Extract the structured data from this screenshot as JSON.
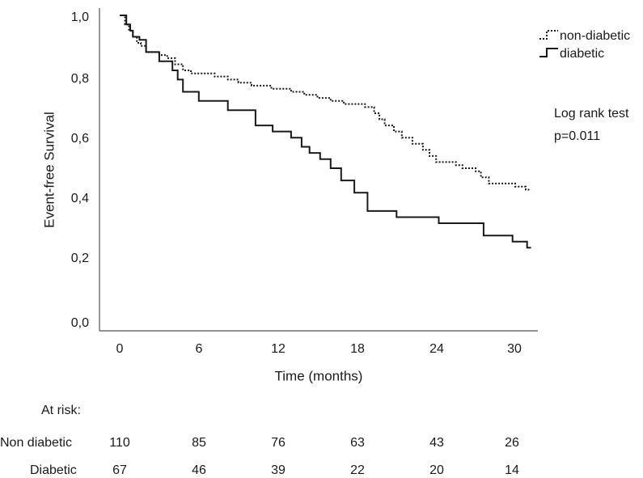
{
  "chart_data": {
    "type": "line",
    "subtype": "kaplan-meier",
    "title": "",
    "xlabel": "Time (months)",
    "ylabel": "Event-free Survival",
    "xlim": [
      -1.5,
      31.5
    ],
    "ylim": [
      -0.05,
      1.05
    ],
    "x_ticks": [
      0,
      6,
      12,
      18,
      24,
      30
    ],
    "x_tick_labels": [
      "0",
      "6",
      "12",
      "18",
      "24",
      "30"
    ],
    "y_ticks": [
      0,
      0.2,
      0.4,
      0.6,
      0.8,
      1.0
    ],
    "y_tick_labels": [
      "0,0",
      "0,2",
      "0,4",
      "0,6",
      "0,8",
      "1,0"
    ],
    "legend": {
      "placement": "top-right"
    },
    "series": [
      {
        "name": "non-diabetic",
        "style": "dotted",
        "points": [
          [
            0,
            1.0
          ],
          [
            0.4,
            0.97
          ],
          [
            0.7,
            0.95
          ],
          [
            1.0,
            0.93
          ],
          [
            1.3,
            0.91
          ],
          [
            1.6,
            0.9
          ],
          [
            2.0,
            0.88
          ],
          [
            3.0,
            0.87
          ],
          [
            3.6,
            0.86
          ],
          [
            4.2,
            0.84
          ],
          [
            4.8,
            0.82
          ],
          [
            5.4,
            0.81
          ],
          [
            7.2,
            0.8
          ],
          [
            8.2,
            0.79
          ],
          [
            9.0,
            0.78
          ],
          [
            10.0,
            0.77
          ],
          [
            11.5,
            0.76
          ],
          [
            13.0,
            0.75
          ],
          [
            14.0,
            0.74
          ],
          [
            15.0,
            0.73
          ],
          [
            16.0,
            0.72
          ],
          [
            17.0,
            0.71
          ],
          [
            18.6,
            0.7
          ],
          [
            19.3,
            0.68
          ],
          [
            19.7,
            0.66
          ],
          [
            20.1,
            0.64
          ],
          [
            20.8,
            0.62
          ],
          [
            21.4,
            0.6
          ],
          [
            22.2,
            0.58
          ],
          [
            23.0,
            0.56
          ],
          [
            23.5,
            0.54
          ],
          [
            24.0,
            0.52
          ],
          [
            25.5,
            0.51
          ],
          [
            26.0,
            0.5
          ],
          [
            27.0,
            0.49
          ],
          [
            27.4,
            0.47
          ],
          [
            28.0,
            0.45
          ],
          [
            30.0,
            0.44
          ],
          [
            30.8,
            0.43
          ],
          [
            31.2,
            0.43
          ]
        ]
      },
      {
        "name": "diabetic",
        "style": "solid",
        "points": [
          [
            0,
            1.0
          ],
          [
            0.5,
            0.97
          ],
          [
            0.8,
            0.95
          ],
          [
            1.0,
            0.93
          ],
          [
            1.5,
            0.92
          ],
          [
            2.0,
            0.88
          ],
          [
            3.0,
            0.85
          ],
          [
            4.0,
            0.82
          ],
          [
            4.4,
            0.79
          ],
          [
            4.8,
            0.75
          ],
          [
            6.0,
            0.72
          ],
          [
            8.2,
            0.69
          ],
          [
            10.3,
            0.64
          ],
          [
            11.6,
            0.62
          ],
          [
            13.0,
            0.6
          ],
          [
            13.8,
            0.57
          ],
          [
            14.4,
            0.55
          ],
          [
            15.2,
            0.53
          ],
          [
            16.0,
            0.5
          ],
          [
            16.8,
            0.46
          ],
          [
            17.8,
            0.42
          ],
          [
            18.8,
            0.36
          ],
          [
            21.0,
            0.34
          ],
          [
            23.5,
            0.34
          ],
          [
            24.2,
            0.32
          ],
          [
            27.0,
            0.32
          ],
          [
            27.6,
            0.28
          ],
          [
            29.2,
            0.28
          ],
          [
            29.8,
            0.26
          ],
          [
            30.5,
            0.26
          ],
          [
            30.9,
            0.24
          ],
          [
            31.2,
            0.24
          ]
        ]
      }
    ],
    "annotations": [
      "Log rank test",
      "p=0.011"
    ],
    "at_risk": {
      "title": "At risk:",
      "times": [
        0,
        6,
        12,
        18,
        24,
        30
      ],
      "rows": [
        {
          "label": "Non diabetic",
          "values": [
            110,
            85,
            76,
            63,
            43,
            26
          ]
        },
        {
          "label": "Diabetic",
          "values": [
            67,
            46,
            39,
            22,
            20,
            14
          ]
        }
      ]
    }
  }
}
